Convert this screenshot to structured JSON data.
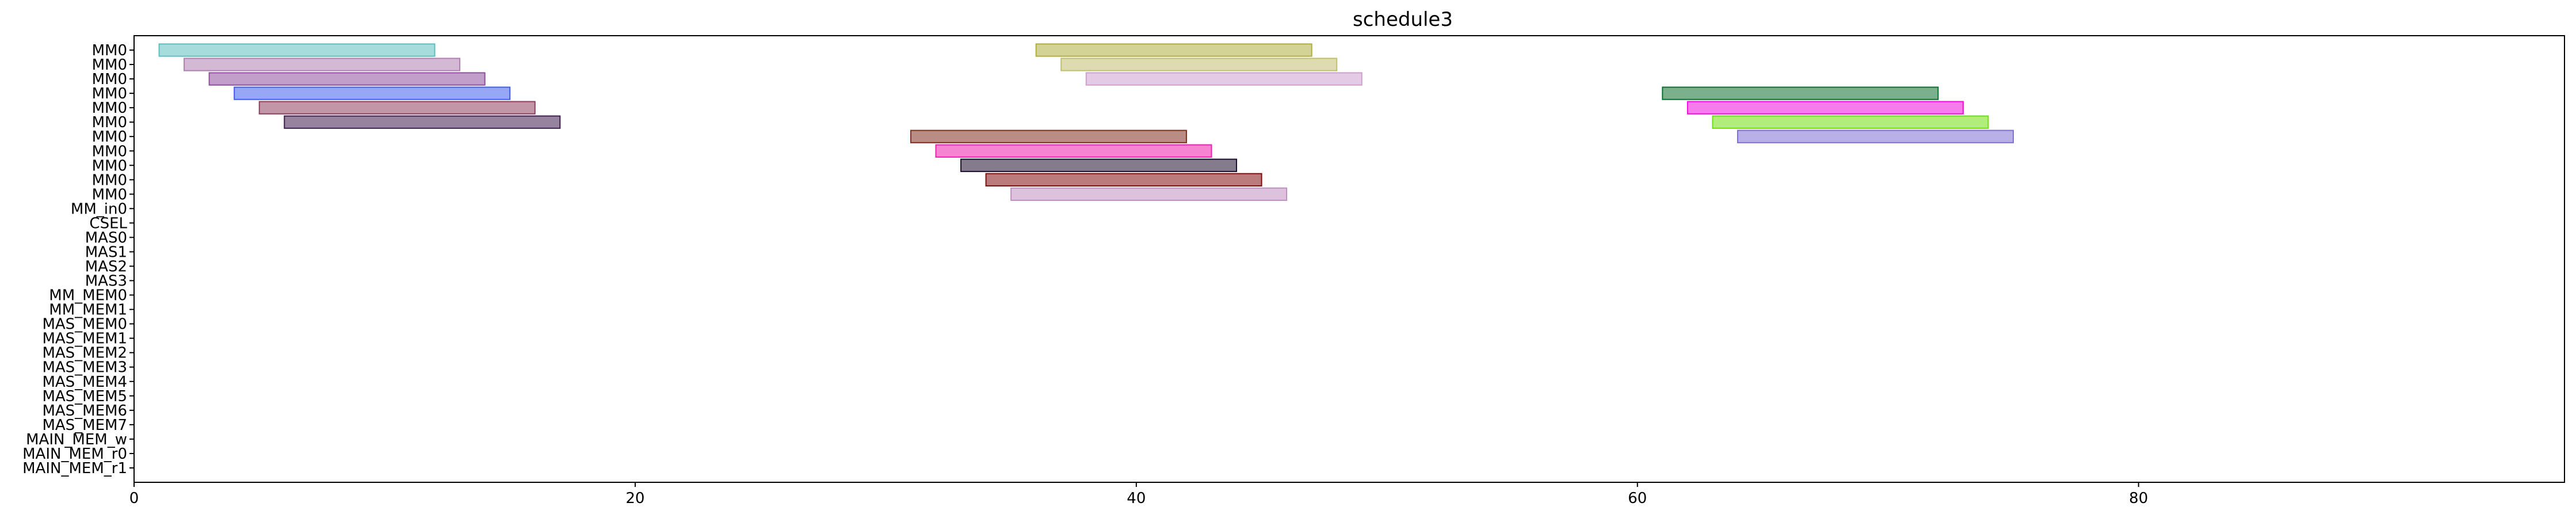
{
  "chart_data": {
    "type": "timeline",
    "title": "schedule3",
    "xlabel": "",
    "ylabel": "",
    "xlim": [
      0,
      97
    ],
    "x_ticks": [
      0,
      20,
      40,
      60,
      80
    ],
    "grid": false,
    "rows": [
      "MM0",
      "MM0",
      "MM0",
      "MM0",
      "MM0",
      "MM0",
      "MM0",
      "MM0",
      "MM0",
      "MM0",
      "MM0",
      "MM_in0",
      "CSEL",
      "MAS0",
      "MAS1",
      "MAS2",
      "MAS3",
      "MM_MEM0",
      "MM_MEM1",
      "MAS_MEM0",
      "MAS_MEM1",
      "MAS_MEM2",
      "MAS_MEM3",
      "MAS_MEM4",
      "MAS_MEM5",
      "MAS_MEM6",
      "MAS_MEM7",
      "MAIN_MEM_w",
      "MAIN_MEM_r0",
      "MAIN_MEM_r1"
    ],
    "palette": [
      "#5fbfbf",
      "#b07fb0",
      "#7fbf3f",
      "#3f5fef",
      "#bf3fbf",
      "#7f3f3f",
      "#bfbf4f",
      "#3fbf7f",
      "#ef5f9f",
      "#9f7fdf",
      "#df8f3f",
      "#4f9f9f",
      "#cf7f7f",
      "#8fdf8f",
      "#ef7f3f",
      "#6f6fcf",
      "#3fdfdf",
      "#bf9f6f",
      "#afef3f",
      "#9f3f6f",
      "#cfcfcf",
      "#ffef5f",
      "#5f9fef",
      "#ef5f5f"
    ],
    "bars": [
      {
        "row": 0,
        "start": 1,
        "end": 12,
        "color": "#5fbfbf"
      },
      {
        "row": 1,
        "start": 2,
        "end": 13,
        "color": "#b07fb0"
      },
      {
        "row": 2,
        "start": 3,
        "end": 14,
        "color": "#8f4f9f"
      },
      {
        "row": 3,
        "start": 4,
        "end": 15,
        "color": "#3f5fef"
      },
      {
        "row": 4,
        "start": 5,
        "end": 16,
        "color": "#8f3f5f"
      },
      {
        "row": 5,
        "start": 6,
        "end": 17,
        "color": "#3f1f4f"
      },
      {
        "row": 6,
        "start": 31,
        "end": 42,
        "color": "#7f2f1f"
      },
      {
        "row": 7,
        "start": 32,
        "end": 43,
        "color": "#ef1faf"
      },
      {
        "row": 8,
        "start": 33,
        "end": 44,
        "color": "#1f0f2f"
      },
      {
        "row": 9,
        "start": 34,
        "end": 45,
        "color": "#7f0f0f"
      },
      {
        "row": 10,
        "start": 35,
        "end": 46,
        "color": "#bf8fbf"
      },
      {
        "row": 0,
        "start": 36,
        "end": 47,
        "color": "#afaf3f"
      },
      {
        "row": 1,
        "start": 37,
        "end": 48,
        "color": "#bfbf6f"
      },
      {
        "row": 2,
        "start": 38,
        "end": 49,
        "color": "#cf9fcf"
      },
      {
        "row": 3,
        "start": 61,
        "end": 72,
        "color": "#0f6f2f"
      },
      {
        "row": 4,
        "start": 62,
        "end": 73,
        "color": "#ef0fdf"
      },
      {
        "row": 5,
        "start": 63,
        "end": 74,
        "color": "#6fdf0f"
      },
      {
        "row": 6,
        "start": 64,
        "end": 75,
        "color": "#7f6fcf"
      }
    ]
  }
}
